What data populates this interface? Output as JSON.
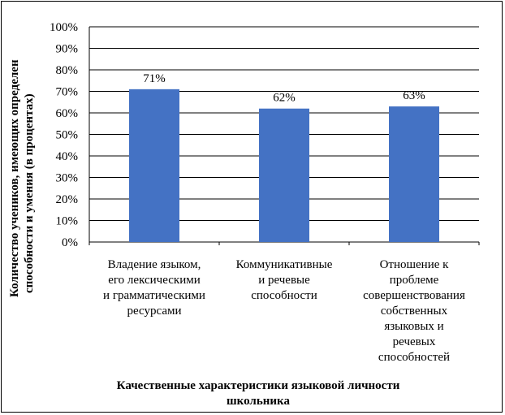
{
  "chart_data": {
    "type": "bar",
    "categories": [
      [
        "Владение языком,",
        "его лексическими",
        "и грамматическими",
        "ресурсами"
      ],
      [
        "Коммуникативные",
        "и речевые",
        "способности"
      ],
      [
        "Отношение к",
        "проблеме",
        "совершенствования",
        "собственных",
        "языковых и",
        "речевых",
        "способностей"
      ]
    ],
    "values": [
      71,
      62,
      63
    ],
    "value_labels": [
      "71%",
      "62%",
      "63%"
    ],
    "ylim": [
      0,
      100
    ],
    "y_ticks": [
      "0%",
      "10%",
      "20%",
      "30%",
      "40%",
      "50%",
      "60%",
      "70%",
      "80%",
      "90%",
      "100%"
    ],
    "ylabel": [
      "Количество учеников, имеющих определен",
      "способности и умения (в процентах)"
    ],
    "xlabel": [
      "Качественные характеристики языковой личности",
      "школьника"
    ],
    "grid": true,
    "legend": "none",
    "bar_color": "#4472C4",
    "grid_color": "#000000"
  }
}
